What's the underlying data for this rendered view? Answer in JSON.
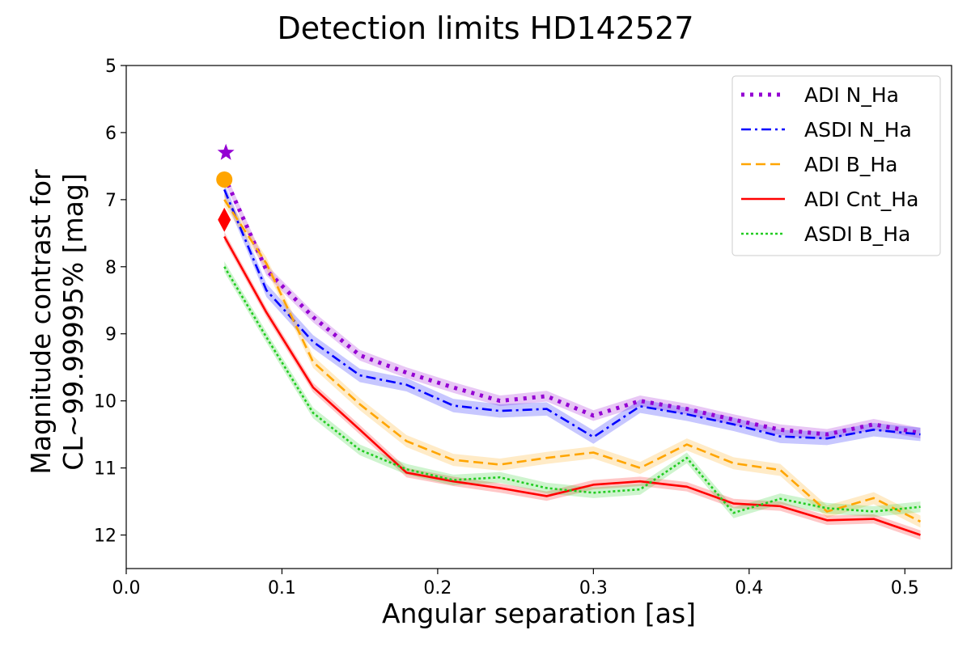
{
  "chart_data": {
    "type": "line",
    "title": "Detection limits HD142527",
    "xlabel": "Angular separation [as]",
    "ylabel_line1": "Magnitude contrast for",
    "ylabel_line2": "CL~99.99995% [mag]",
    "xlim": [
      0.0,
      0.53
    ],
    "ylim": [
      12.5,
      5
    ],
    "y_inverted": true,
    "grid": false,
    "legend_position": "top-right",
    "xticks": [
      0.0,
      0.1,
      0.2,
      0.3,
      0.4,
      0.5
    ],
    "xtick_labels": [
      "0.0",
      "0.1",
      "0.2",
      "0.3",
      "0.4",
      "0.5"
    ],
    "yticks": [
      5,
      6,
      7,
      8,
      9,
      10,
      11,
      12
    ],
    "ytick_labels": [
      "5",
      "6",
      "7",
      "8",
      "9",
      "10",
      "11",
      "12"
    ],
    "x": [
      0.063,
      0.09,
      0.12,
      0.15,
      0.18,
      0.21,
      0.24,
      0.27,
      0.3,
      0.33,
      0.36,
      0.39,
      0.42,
      0.45,
      0.48,
      0.51
    ],
    "series": [
      {
        "name": "ADI N_Ha",
        "color": "#9400d3",
        "dash": "dotted-thick",
        "values": [
          6.65,
          8.05,
          8.75,
          9.32,
          9.58,
          9.8,
          10.0,
          9.93,
          10.22,
          10.0,
          10.12,
          10.28,
          10.43,
          10.5,
          10.35,
          10.48
        ],
        "band": 0.08,
        "marker": {
          "shape": "star",
          "x": 0.064,
          "y": 6.3
        }
      },
      {
        "name": "ASDI N_Ha",
        "color": "#0000ff",
        "dash": "dashdot",
        "values": [
          6.85,
          8.35,
          9.12,
          9.62,
          9.76,
          10.07,
          10.15,
          10.12,
          10.54,
          10.08,
          10.2,
          10.35,
          10.53,
          10.56,
          10.43,
          10.5
        ],
        "band": 0.1,
        "marker": null
      },
      {
        "name": "ADI B_Ha",
        "color": "#ffa500",
        "dash": "dashed",
        "values": [
          7.0,
          7.95,
          9.42,
          10.05,
          10.6,
          10.88,
          10.95,
          10.85,
          10.77,
          11.0,
          10.65,
          10.93,
          11.03,
          11.65,
          11.45,
          11.8
        ],
        "band": 0.09,
        "marker": {
          "shape": "circle",
          "x": 0.063,
          "y": 6.7
        }
      },
      {
        "name": "ADI Cnt_Ha",
        "color": "#ff0000",
        "dash": "solid",
        "values": [
          7.55,
          8.68,
          9.8,
          10.43,
          11.07,
          11.2,
          11.3,
          11.42,
          11.25,
          11.2,
          11.28,
          11.53,
          11.57,
          11.78,
          11.76,
          12.0
        ],
        "band": 0.07,
        "marker": {
          "shape": "diamond",
          "x": 0.063,
          "y": 7.3
        }
      },
      {
        "name": "ASDI B_Ha",
        "color": "#22cc22",
        "dash": "dotted",
        "values": [
          8.0,
          9.05,
          10.18,
          10.73,
          11.02,
          11.18,
          11.14,
          11.3,
          11.37,
          11.32,
          10.85,
          11.67,
          11.46,
          11.6,
          11.65,
          11.58
        ],
        "band": 0.08,
        "marker": null
      }
    ]
  }
}
